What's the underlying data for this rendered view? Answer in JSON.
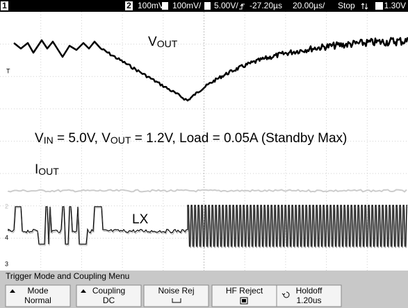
{
  "status_bar": {
    "channel_1": "1",
    "channel_2": "2",
    "ch2_scale": "100mV/",
    "ch3_scale": "100mV/",
    "ch4_scale": "5.00V/",
    "delay": "-27.20µs",
    "timebase": "20.00µs/",
    "run_state": "Stop",
    "trigger_level": "1.30V"
  },
  "annotations": {
    "vout": [
      "V",
      "OUT"
    ],
    "conditions": [
      "V",
      "IN",
      " = 5.0V, V",
      "OUT",
      " = 1.2V, Load = 0.05A (Standby Max)"
    ],
    "iout": [
      "I",
      "OUT"
    ],
    "lx": "LX"
  },
  "markers": {
    "trigger": "T",
    "ch2": "2",
    "ch4": "4",
    "ch3": "3"
  },
  "menu": {
    "title": "Trigger Mode and Coupling Menu",
    "buttons": [
      {
        "label": "Mode",
        "value": "Normal"
      },
      {
        "label": "Coupling",
        "value": "DC"
      },
      {
        "label": "Noise Rej"
      },
      {
        "label": "HF Reject"
      },
      {
        "label": "Holdoff",
        "value": "1.20us"
      }
    ]
  }
}
